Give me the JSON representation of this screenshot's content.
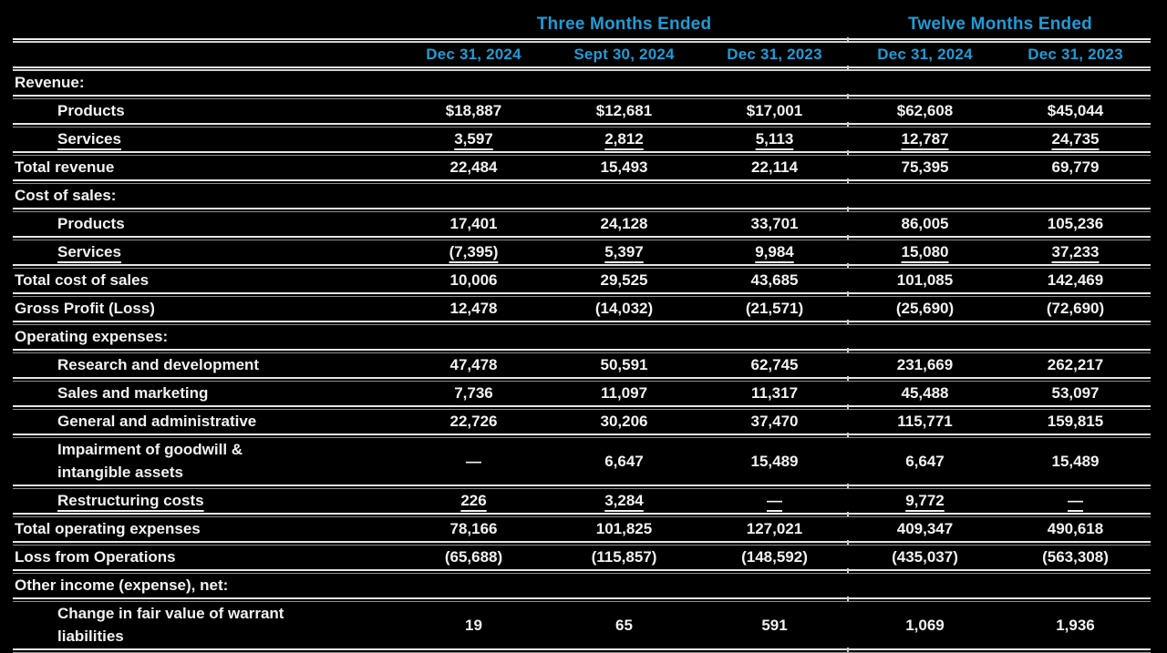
{
  "colors": {
    "background": "#000000",
    "text": "#f2f2f2",
    "accent_header": "#1e9cd7",
    "rule_bright": "#e6e6e6",
    "rule_dim": "#8f8f8f"
  },
  "table": {
    "group_headers": [
      {
        "label": "Three Months Ended",
        "span_columns": 3
      },
      {
        "label": "Twelve Months Ended",
        "span_columns": 2
      }
    ],
    "column_headers": [
      "Dec 31, 2024",
      "Sept 30, 2024",
      "Dec 31, 2023",
      "Dec 31, 2024",
      "Dec 31, 2023"
    ],
    "rows": [
      {
        "label": "Revenue:",
        "style": "section",
        "underline": false,
        "values": []
      },
      {
        "label": "Products",
        "style": "item",
        "underline": false,
        "values": [
          "$18,887",
          "$12,681",
          "$17,001",
          "$62,608",
          "$45,044"
        ]
      },
      {
        "label": "Services",
        "style": "item",
        "underline": true,
        "values": [
          "3,597",
          "2,812",
          "5,113",
          "12,787",
          "24,735"
        ]
      },
      {
        "label": "Total revenue",
        "style": "total",
        "underline": false,
        "values": [
          "22,484",
          "15,493",
          "22,114",
          "75,395",
          "69,779"
        ]
      },
      {
        "label": "Cost of sales:",
        "style": "section",
        "underline": false,
        "values": []
      },
      {
        "label": "Products",
        "style": "item",
        "underline": false,
        "values": [
          "17,401",
          "24,128",
          "33,701",
          "86,005",
          "105,236"
        ]
      },
      {
        "label": "Services",
        "style": "item",
        "underline": true,
        "values": [
          "(7,395)",
          "5,397",
          "9,984",
          "15,080",
          "37,233"
        ]
      },
      {
        "label": "Total cost of sales",
        "style": "total",
        "underline": false,
        "values": [
          "10,006",
          "29,525",
          "43,685",
          "101,085",
          "142,469"
        ]
      },
      {
        "label": "Gross Profit (Loss)",
        "style": "total",
        "underline": false,
        "values": [
          "12,478",
          "(14,032)",
          "(21,571)",
          "(25,690)",
          "(72,690)"
        ]
      },
      {
        "label": "Operating expenses:",
        "style": "section",
        "underline": false,
        "values": []
      },
      {
        "label": "Research and development",
        "style": "item",
        "underline": false,
        "values": [
          "47,478",
          "50,591",
          "62,745",
          "231,669",
          "262,217"
        ]
      },
      {
        "label": "Sales and marketing",
        "style": "item",
        "underline": false,
        "values": [
          "7,736",
          "11,097",
          "11,317",
          "45,488",
          "53,097"
        ]
      },
      {
        "label": "General and administrative",
        "style": "item",
        "underline": false,
        "values": [
          "22,726",
          "30,206",
          "37,470",
          "115,771",
          "159,815"
        ]
      },
      {
        "label": "Impairment of goodwill &\nintangible assets",
        "style": "item-tall",
        "underline": false,
        "values": [
          "—",
          "6,647",
          "15,489",
          "6,647",
          "15,489"
        ]
      },
      {
        "label": "Restructuring costs",
        "style": "item",
        "underline": true,
        "values": [
          "226",
          "3,284",
          "—",
          "9,772",
          "—"
        ]
      },
      {
        "label": "Total operating expenses",
        "style": "total",
        "underline": false,
        "values": [
          "78,166",
          "101,825",
          "127,021",
          "409,347",
          "490,618"
        ]
      },
      {
        "label": "Loss from Operations",
        "style": "total",
        "underline": false,
        "values": [
          "(65,688)",
          "(115,857)",
          "(148,592)",
          "(435,037)",
          "(563,308)"
        ]
      },
      {
        "label": "Other income (expense), net:",
        "style": "section",
        "underline": false,
        "values": []
      },
      {
        "label": "Change in fair value of warrant\nliabilities",
        "style": "item-tall",
        "underline": false,
        "values": [
          "19",
          "65",
          "591",
          "1,069",
          "1,936"
        ]
      }
    ]
  }
}
